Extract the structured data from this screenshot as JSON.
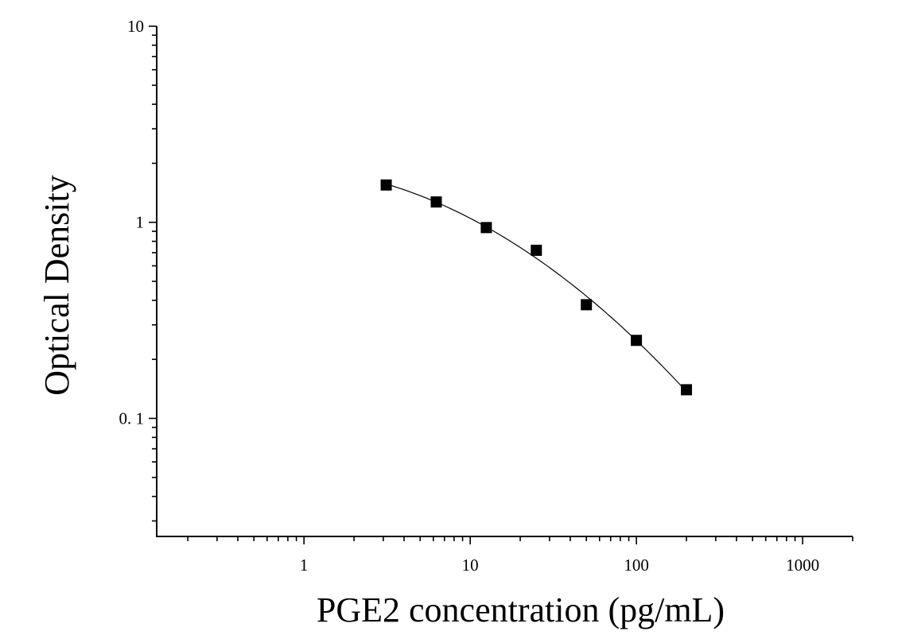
{
  "chart_data": {
    "type": "scatter",
    "xlabel": "PGE2 concentration (pg/mL)",
    "ylabel": "Optical Density",
    "x_scale": "log",
    "y_scale": "log",
    "xlim": [
      0.13,
      2000
    ],
    "ylim": [
      0.025,
      10
    ],
    "x_ticks": [
      {
        "value": 1,
        "label": "1"
      },
      {
        "value": 10,
        "label": "10"
      },
      {
        "value": 100,
        "label": "100"
      },
      {
        "value": 1000,
        "label": "1000"
      }
    ],
    "y_ticks": [
      {
        "value": 0.1,
        "label": "0. 1"
      },
      {
        "value": 1,
        "label": "1"
      },
      {
        "value": 10,
        "label": "10"
      }
    ],
    "grid": false,
    "marker": "square",
    "color": "#000000",
    "series": [
      {
        "x": [
          3.125,
          6.25,
          12.5,
          25,
          50,
          100,
          200
        ],
        "y": [
          1.55,
          1.27,
          0.94,
          0.72,
          0.38,
          0.25,
          0.14
        ]
      }
    ],
    "fit_curve": true
  }
}
